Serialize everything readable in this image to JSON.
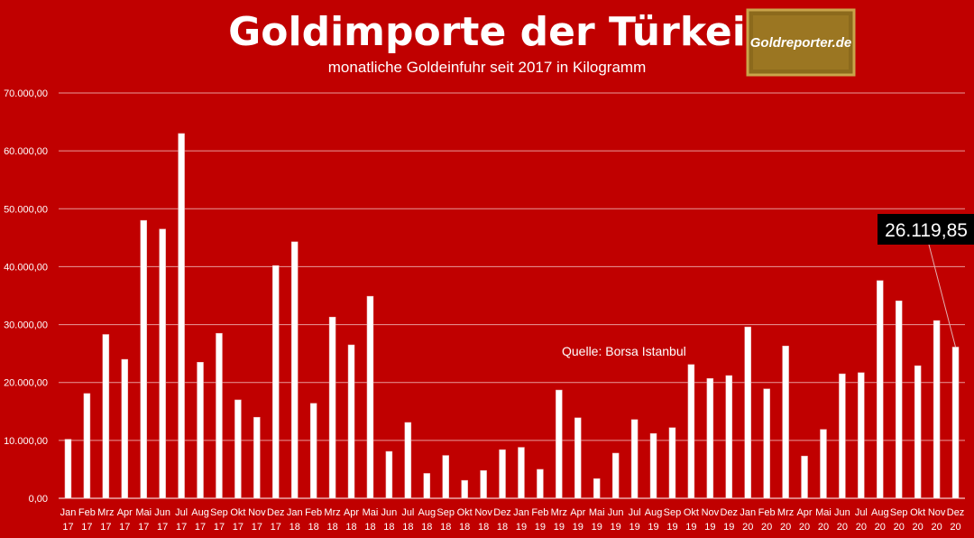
{
  "chart_data": {
    "type": "bar",
    "title": "Goldimporte der Türkei",
    "subtitle": "monatliche Goldeinfuhr seit 2017 in Kilogramm",
    "source": "Quelle: Borsa Istanbul",
    "logo_text": "Goldreporter.de",
    "callout_label": "26.119,85",
    "callout_index": 47,
    "ylim": [
      0,
      70000
    ],
    "y_ticks": [
      "0,00",
      "10.000,00",
      "20.000,00",
      "30.000,00",
      "40.000,00",
      "50.000,00",
      "60.000,00",
      "70.000,00"
    ],
    "y_tick_values": [
      0,
      10000,
      20000,
      30000,
      40000,
      50000,
      60000,
      70000
    ],
    "grid": true,
    "legend": "none",
    "colors": {
      "background": "#c00000",
      "bar": "#ffffff",
      "bar_outline": "#e8b0b0",
      "text": "#ffffff",
      "callout_bg": "#000000",
      "logo_bg": "#8c6a1c"
    },
    "categories": [
      [
        "Jan",
        "17"
      ],
      [
        "Feb",
        "17"
      ],
      [
        "Mrz",
        "17"
      ],
      [
        "Apr",
        "17"
      ],
      [
        "Mai",
        "17"
      ],
      [
        "Jun",
        "17"
      ],
      [
        "Jul",
        "17"
      ],
      [
        "Aug",
        "17"
      ],
      [
        "Sep",
        "17"
      ],
      [
        "Okt",
        "17"
      ],
      [
        "Nov",
        "17"
      ],
      [
        "Dez",
        "17"
      ],
      [
        "Jan",
        "18"
      ],
      [
        "Feb",
        "18"
      ],
      [
        "Mrz",
        "18"
      ],
      [
        "Apr",
        "18"
      ],
      [
        "Mai",
        "18"
      ],
      [
        "Jun",
        "18"
      ],
      [
        "Jul",
        "18"
      ],
      [
        "Aug",
        "18"
      ],
      [
        "Sep",
        "18"
      ],
      [
        "Okt",
        "18"
      ],
      [
        "Nov",
        "18"
      ],
      [
        "Dez",
        "18"
      ],
      [
        "Jan",
        "19"
      ],
      [
        "Feb",
        "19"
      ],
      [
        "Mrz",
        "19"
      ],
      [
        "Apr",
        "19"
      ],
      [
        "Mai",
        "19"
      ],
      [
        "Jun",
        "19"
      ],
      [
        "Jul",
        "19"
      ],
      [
        "Aug",
        "19"
      ],
      [
        "Sep",
        "19"
      ],
      [
        "Okt",
        "19"
      ],
      [
        "Nov",
        "19"
      ],
      [
        "Dez",
        "19"
      ],
      [
        "Jan",
        "20"
      ],
      [
        "Feb",
        "20"
      ],
      [
        "Mrz",
        "20"
      ],
      [
        "Apr",
        "20"
      ],
      [
        "Mai",
        "20"
      ],
      [
        "Jun",
        "20"
      ],
      [
        "Jul",
        "20"
      ],
      [
        "Aug",
        "20"
      ],
      [
        "Sep",
        "20"
      ],
      [
        "Okt",
        "20"
      ],
      [
        "Nov",
        "20"
      ],
      [
        "Dez",
        "20"
      ]
    ],
    "values": [
      10200,
      18100,
      28300,
      24000,
      48000,
      46500,
      63000,
      23500,
      28500,
      17000,
      14000,
      40200,
      44300,
      16400,
      31300,
      26500,
      34900,
      8100,
      13100,
      4300,
      7400,
      3100,
      4800,
      8400,
      8800,
      5000,
      18700,
      13900,
      3400,
      7800,
      13600,
      11200,
      12200,
      23100,
      20700,
      21200,
      29600,
      18900,
      26300,
      7300,
      11900,
      21500,
      21700,
      37600,
      34100,
      22900,
      30700,
      26119.85
    ]
  }
}
